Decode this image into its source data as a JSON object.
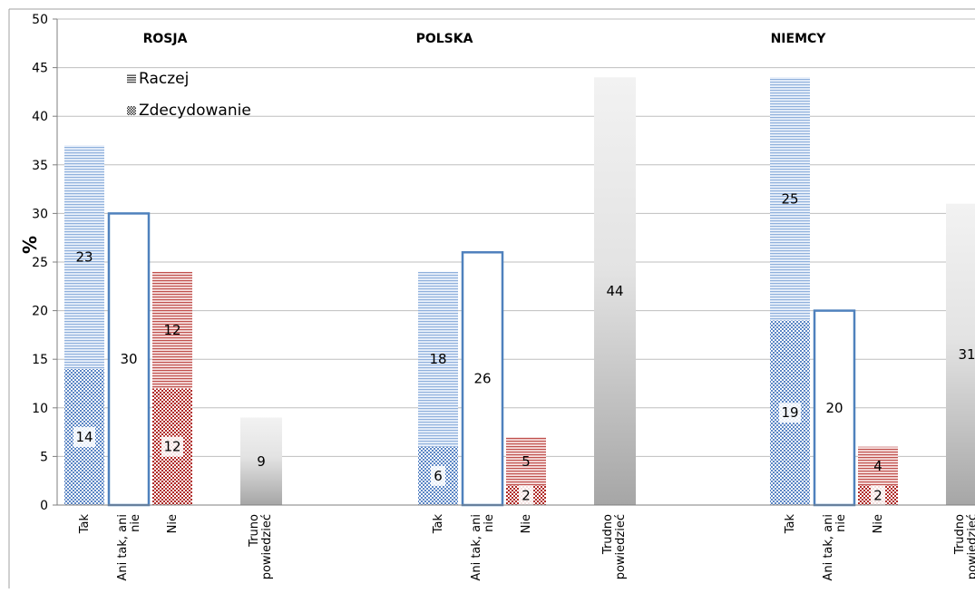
{
  "chart_data": {
    "type": "bar",
    "ylabel": "%",
    "ylim": [
      0,
      50
    ],
    "yticks": [
      0,
      5,
      10,
      15,
      20,
      25,
      30,
      35,
      40,
      45,
      50
    ],
    "grid": true,
    "legend_position": "top-left",
    "legend": [
      {
        "name": "Raczej",
        "pattern": "horizontal-lines"
      },
      {
        "name": "Zdecydowanie",
        "pattern": "checkered"
      }
    ],
    "colors": {
      "tak": "#8fb0dc",
      "nie": "#c0504d",
      "neutral_outline": "#4f81bd",
      "trudno_light": "#f2f2f2",
      "trudno_dark": "#a6a6a6",
      "grid": "#bfbfbf",
      "axis": "#7f7f7f"
    },
    "groups": [
      {
        "name": "ROSJA",
        "bars": [
          {
            "category": "Tak",
            "kind": "tak",
            "stack": [
              {
                "series": "Zdecydowanie",
                "value": 14
              },
              {
                "series": "Raczej",
                "value": 23
              }
            ]
          },
          {
            "category": "Ani tak, ani nie",
            "kind": "neutral",
            "value": 30
          },
          {
            "category": "Nie",
            "kind": "nie",
            "stack": [
              {
                "series": "Zdecydowanie",
                "value": 12
              },
              {
                "series": "Raczej",
                "value": 12
              }
            ]
          },
          {
            "category": "Truno powiedzieć",
            "kind": "trudno",
            "value": 9
          }
        ]
      },
      {
        "name": "POLSKA",
        "bars": [
          {
            "category": "Tak",
            "kind": "tak",
            "stack": [
              {
                "series": "Zdecydowanie",
                "value": 6
              },
              {
                "series": "Raczej",
                "value": 18
              }
            ]
          },
          {
            "category": "Ani tak, ani nie",
            "kind": "neutral",
            "value": 26
          },
          {
            "category": "Nie",
            "kind": "nie",
            "stack": [
              {
                "series": "Zdecydowanie",
                "value": 2
              },
              {
                "series": "Raczej",
                "value": 5
              }
            ]
          },
          {
            "category": "Trudno powiedzieć",
            "kind": "trudno",
            "value": 44
          }
        ]
      },
      {
        "name": "NIEMCY",
        "bars": [
          {
            "category": "Tak",
            "kind": "tak",
            "stack": [
              {
                "series": "Zdecydowanie",
                "value": 19
              },
              {
                "series": "Raczej",
                "value": 25
              }
            ]
          },
          {
            "category": "Ani tak, ani nie",
            "kind": "neutral",
            "value": 20
          },
          {
            "category": "Nie",
            "kind": "nie",
            "stack": [
              {
                "series": "Zdecydowanie",
                "value": 2
              },
              {
                "series": "Raczej",
                "value": 4
              }
            ]
          },
          {
            "category": "Trudno powiedzieć",
            "kind": "trudno",
            "value": 31
          }
        ]
      }
    ]
  }
}
